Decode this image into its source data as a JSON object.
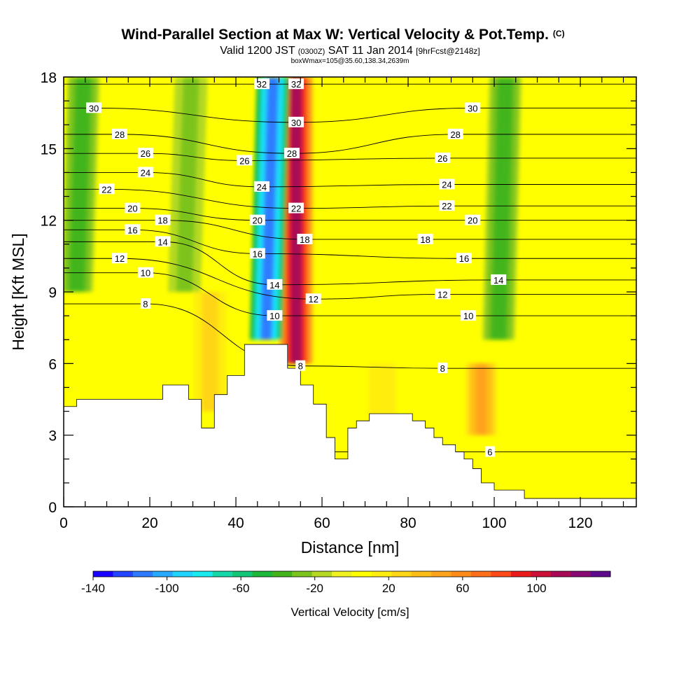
{
  "chart_data": {
    "type": "heatmap",
    "title": "Wind-Parallel Section at Max W: Vertical Velocity & Pot.Temp.",
    "title_mark": "(C)",
    "subtitle_parts": [
      "Valid 1200 JST",
      "(0300Z)",
      "SAT 11 Jan 2014",
      "[9hrFcst@2148z]"
    ],
    "subtitle2": "boxWmax=105@35.60,138.34,2639m",
    "xlabel": "Distance [nm]",
    "ylabel": "Height [Kft MSL]",
    "xlim": [
      0,
      133
    ],
    "ylim": [
      0,
      18
    ],
    "xticks": [
      0,
      20,
      40,
      60,
      80,
      100,
      120
    ],
    "yticks": [
      0,
      3,
      6,
      9,
      12,
      15,
      18
    ],
    "colorbar": {
      "label": "Vertical Velocity [cm/s]",
      "range": [
        -140,
        140
      ],
      "ticks": [
        -140,
        -100,
        -60,
        -20,
        20,
        60,
        100
      ],
      "colors": [
        "#1a00ff",
        "#2445ff",
        "#2e7bff",
        "#26a9ff",
        "#1fd4ff",
        "#19eaf0",
        "#14d8a8",
        "#12c878",
        "#1cb83a",
        "#43b51a",
        "#7bc41d",
        "#b4d920",
        "#f0f21f",
        "#ffff00",
        "#ffee10",
        "#ffd517",
        "#ffbe17",
        "#ffa31a",
        "#ff8a1a",
        "#ff6e1a",
        "#ff4919",
        "#ec1b1b",
        "#cc1036",
        "#a80a55",
        "#8a0a73",
        "#5e0a8c"
      ]
    },
    "updrafts": [
      {
        "x": 54,
        "zmin": 6,
        "zmax": 18,
        "w": 110
      },
      {
        "x": 97,
        "zmin": 3,
        "zmax": 6,
        "w": 50
      },
      {
        "x": 34,
        "zmin": 4,
        "zmax": 9,
        "w": 30
      },
      {
        "x": 74,
        "zmin": 3,
        "zmax": 6,
        "w": 20
      }
    ],
    "downdrafts": [
      {
        "x": 47,
        "zmin": 7,
        "zmax": 18,
        "w": -110
      },
      {
        "x": 3,
        "zmin": 9,
        "zmax": 18,
        "w": -40
      },
      {
        "x": 28,
        "zmin": 9,
        "zmax": 18,
        "w": -30
      },
      {
        "x": 101,
        "zmin": 7,
        "zmax": 18,
        "w": -40
      }
    ],
    "terrain": [
      [
        0,
        4.2
      ],
      [
        3,
        4.2
      ],
      [
        3,
        4.5
      ],
      [
        23,
        4.5
      ],
      [
        23,
        5.1
      ],
      [
        29,
        5.1
      ],
      [
        29,
        4.5
      ],
      [
        32,
        4.5
      ],
      [
        32,
        3.3
      ],
      [
        35,
        3.3
      ],
      [
        35,
        4.7
      ],
      [
        38,
        4.7
      ],
      [
        38,
        5.5
      ],
      [
        42,
        5.5
      ],
      [
        42,
        6.8
      ],
      [
        52,
        6.8
      ],
      [
        52,
        5.8
      ],
      [
        55,
        5.8
      ],
      [
        55,
        5.1
      ],
      [
        58,
        5.1
      ],
      [
        58,
        4.3
      ],
      [
        61,
        4.3
      ],
      [
        61,
        2.9
      ],
      [
        63,
        2.9
      ],
      [
        63,
        2.0
      ],
      [
        66,
        2.0
      ],
      [
        66,
        3.3
      ],
      [
        68,
        3.3
      ],
      [
        68,
        3.6
      ],
      [
        71,
        3.6
      ],
      [
        71,
        3.9
      ],
      [
        81,
        3.9
      ],
      [
        81,
        3.6
      ],
      [
        84,
        3.6
      ],
      [
        84,
        3.3
      ],
      [
        86,
        3.3
      ],
      [
        86,
        2.9
      ],
      [
        88,
        2.9
      ],
      [
        88,
        2.6
      ],
      [
        91,
        2.6
      ],
      [
        91,
        2.3
      ],
      [
        93,
        2.3
      ],
      [
        93,
        2.0
      ],
      [
        95,
        2.0
      ],
      [
        95,
        1.6
      ],
      [
        97,
        1.6
      ],
      [
        97,
        1.0
      ],
      [
        100,
        1.0
      ],
      [
        100,
        0.7
      ],
      [
        107,
        0.7
      ],
      [
        107,
        0.35
      ],
      [
        133,
        0.35
      ]
    ],
    "contours": [
      {
        "label": "6",
        "anchor": [
          99,
          2.3
        ]
      },
      {
        "label": "8",
        "anchor": [
          19,
          8.5
        ]
      },
      {
        "label": "8",
        "anchor": [
          55,
          5.9
        ]
      },
      {
        "label": "8",
        "anchor": [
          88,
          5.8
        ]
      },
      {
        "label": "10",
        "anchor": [
          19,
          9.8
        ]
      },
      {
        "label": "10",
        "anchor": [
          49,
          8.0
        ]
      },
      {
        "label": "10",
        "anchor": [
          94,
          8.0
        ]
      },
      {
        "label": "12",
        "anchor": [
          13,
          10.4
        ]
      },
      {
        "label": "12",
        "anchor": [
          58,
          8.7
        ]
      },
      {
        "label": "12",
        "anchor": [
          88,
          8.9
        ]
      },
      {
        "label": "14",
        "anchor": [
          23,
          11.1
        ]
      },
      {
        "label": "14",
        "anchor": [
          49,
          9.3
        ]
      },
      {
        "label": "14",
        "anchor": [
          101,
          9.5
        ]
      },
      {
        "label": "16",
        "anchor": [
          16,
          11.6
        ]
      },
      {
        "label": "16",
        "anchor": [
          45,
          10.6
        ]
      },
      {
        "label": "16",
        "anchor": [
          93,
          10.4
        ]
      },
      {
        "label": "18",
        "anchor": [
          23,
          12.0
        ]
      },
      {
        "label": "18",
        "anchor": [
          56,
          11.2
        ]
      },
      {
        "label": "18",
        "anchor": [
          84,
          11.2
        ]
      },
      {
        "label": "20",
        "anchor": [
          16,
          12.5
        ]
      },
      {
        "label": "20",
        "anchor": [
          45,
          12.0
        ]
      },
      {
        "label": "20",
        "anchor": [
          95,
          12.0
        ]
      },
      {
        "label": "22",
        "anchor": [
          10,
          13.3
        ]
      },
      {
        "label": "22",
        "anchor": [
          54,
          12.5
        ]
      },
      {
        "label": "22",
        "anchor": [
          89,
          12.6
        ]
      },
      {
        "label": "24",
        "anchor": [
          19,
          14.0
        ]
      },
      {
        "label": "24",
        "anchor": [
          46,
          13.4
        ]
      },
      {
        "label": "24",
        "anchor": [
          89,
          13.5
        ]
      },
      {
        "label": "26",
        "anchor": [
          19,
          14.8
        ]
      },
      {
        "label": "26",
        "anchor": [
          42,
          14.5
        ]
      },
      {
        "label": "26",
        "anchor": [
          88,
          14.6
        ]
      },
      {
        "label": "28",
        "anchor": [
          13,
          15.6
        ]
      },
      {
        "label": "28",
        "anchor": [
          53,
          14.8
        ]
      },
      {
        "label": "28",
        "anchor": [
          91,
          15.6
        ]
      },
      {
        "label": "30",
        "anchor": [
          7,
          16.7
        ]
      },
      {
        "label": "30",
        "anchor": [
          54,
          16.1
        ]
      },
      {
        "label": "30",
        "anchor": [
          95,
          16.7
        ]
      },
      {
        "label": "32",
        "anchor": [
          46,
          17.7
        ]
      },
      {
        "label": "32",
        "anchor": [
          54,
          17.7
        ]
      }
    ]
  }
}
